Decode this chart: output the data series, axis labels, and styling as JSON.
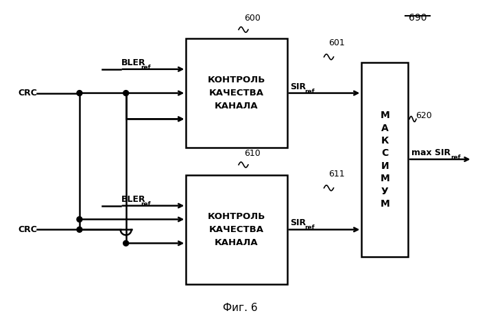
{
  "background_color": "#ffffff",
  "fig_label": "Фиг. 6",
  "label_690": "690",
  "label_600": "600",
  "label_610": "610",
  "label_620": "620",
  "label_601": "601",
  "label_611": "611",
  "box_text": "КОНТРОЛЬ\nКАЧЕСТВА\nКАНАЛА",
  "max_text": "М\nА\nК\nС\nИ\nМ\nУ\nМ"
}
